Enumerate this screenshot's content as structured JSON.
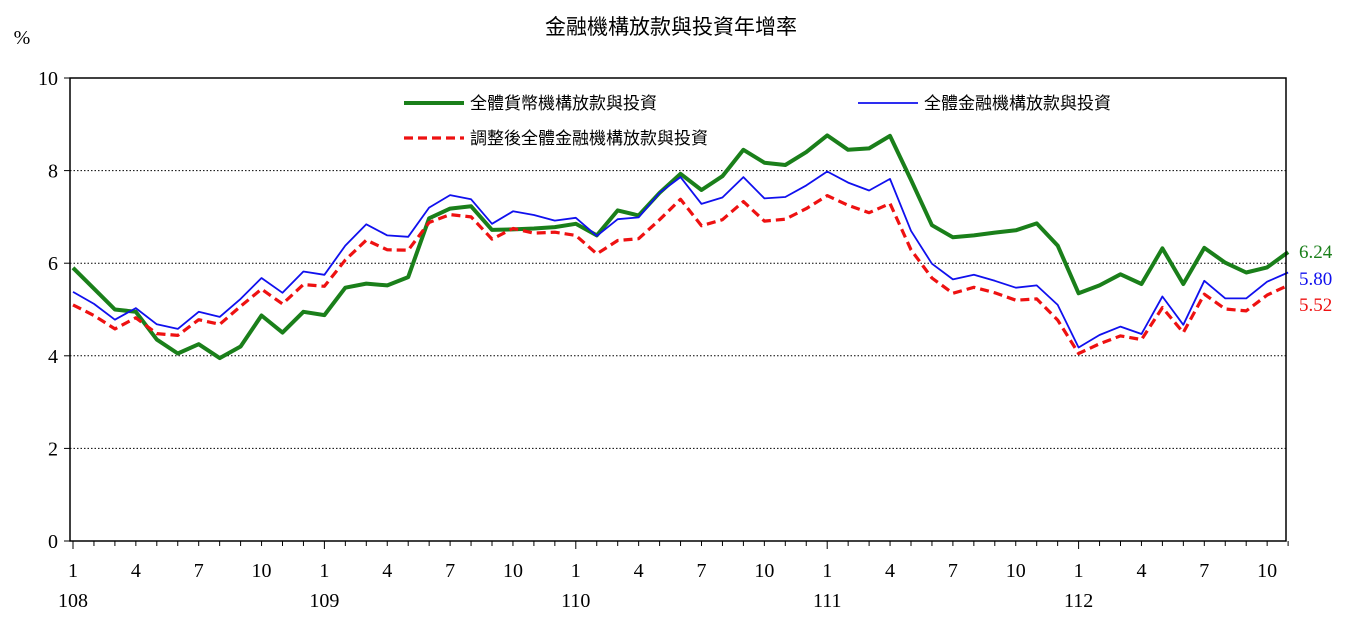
{
  "chart_data": {
    "type": "line",
    "title": "金融機構放款與投資年增率",
    "ylabel": "%",
    "ylim": [
      0,
      10
    ],
    "yticks": [
      0,
      2,
      4,
      6,
      8,
      10
    ],
    "grid": "horizontal dotted",
    "legend_position": "top inside plot",
    "x_month_ticks": [
      "1",
      "4",
      "7",
      "10",
      "1",
      "4",
      "7",
      "10",
      "1",
      "4",
      "7",
      "10",
      "1",
      "4",
      "7",
      "10",
      "1",
      "4",
      "7",
      "10"
    ],
    "x_year_labels": [
      "108",
      "109",
      "110",
      "111",
      "112"
    ],
    "x": [
      "108/1",
      "108/2",
      "108/3",
      "108/4",
      "108/5",
      "108/6",
      "108/7",
      "108/8",
      "108/9",
      "108/10",
      "108/11",
      "108/12",
      "109/1",
      "109/2",
      "109/3",
      "109/4",
      "109/5",
      "109/6",
      "109/7",
      "109/8",
      "109/9",
      "109/10",
      "109/11",
      "109/12",
      "110/1",
      "110/2",
      "110/3",
      "110/4",
      "110/5",
      "110/6",
      "110/7",
      "110/8",
      "110/9",
      "110/10",
      "110/11",
      "110/12",
      "111/1",
      "111/2",
      "111/3",
      "111/4",
      "111/5",
      "111/6",
      "111/7",
      "111/8",
      "111/9",
      "111/10",
      "111/11",
      "111/12",
      "112/1",
      "112/2",
      "112/3",
      "112/4",
      "112/5",
      "112/6",
      "112/7",
      "112/8",
      "112/9",
      "112/10",
      "112/11"
    ],
    "series": [
      {
        "name": "全體貨幣機構放款與投資",
        "color": "#1a7f1a",
        "style": "solid-thick",
        "end_label": "6.24",
        "values": [
          5.9,
          5.45,
          5.0,
          4.95,
          4.35,
          4.05,
          4.25,
          3.95,
          4.2,
          4.87,
          4.5,
          4.95,
          4.88,
          5.47,
          5.56,
          5.52,
          5.7,
          6.97,
          7.18,
          7.23,
          6.72,
          6.73,
          6.75,
          6.78,
          6.85,
          6.6,
          7.14,
          7.03,
          7.52,
          7.93,
          7.58,
          7.88,
          8.45,
          8.17,
          8.12,
          8.4,
          8.76,
          8.45,
          8.48,
          8.75,
          7.8,
          6.82,
          6.56,
          6.6,
          6.66,
          6.71,
          6.86,
          6.38,
          5.35,
          5.52,
          5.76,
          5.55,
          6.32,
          5.55,
          6.33,
          6.01,
          5.8,
          5.91,
          6.24
        ]
      },
      {
        "name": "全體金融機構放款與投資",
        "color": "#1010ee",
        "style": "solid-thin",
        "end_label": "5.80",
        "values": [
          5.38,
          5.12,
          4.78,
          5.03,
          4.68,
          4.58,
          4.95,
          4.84,
          5.23,
          5.68,
          5.36,
          5.82,
          5.75,
          6.38,
          6.84,
          6.6,
          6.57,
          7.2,
          7.47,
          7.38,
          6.85,
          7.12,
          7.04,
          6.92,
          6.98,
          6.59,
          6.95,
          6.99,
          7.52,
          7.86,
          7.28,
          7.42,
          7.86,
          7.4,
          7.43,
          7.68,
          7.98,
          7.74,
          7.57,
          7.82,
          6.7,
          5.99,
          5.65,
          5.75,
          5.62,
          5.47,
          5.52,
          5.1,
          4.18,
          4.45,
          4.63,
          4.47,
          5.28,
          4.67,
          5.62,
          5.24,
          5.24,
          5.6,
          5.8
        ]
      },
      {
        "name": "調整後全體金融機構放款與投資",
        "color": "#ee1111",
        "style": "dashed",
        "end_label": "5.52",
        "values": [
          5.1,
          4.87,
          4.58,
          4.82,
          4.48,
          4.44,
          4.78,
          4.68,
          5.07,
          5.44,
          5.12,
          5.54,
          5.5,
          6.07,
          6.5,
          6.29,
          6.28,
          6.88,
          7.05,
          7.0,
          6.52,
          6.75,
          6.65,
          6.67,
          6.6,
          6.2,
          6.49,
          6.53,
          6.94,
          7.38,
          6.81,
          6.94,
          7.33,
          6.91,
          6.95,
          7.18,
          7.46,
          7.25,
          7.09,
          7.29,
          6.29,
          5.68,
          5.35,
          5.48,
          5.36,
          5.2,
          5.23,
          4.77,
          4.05,
          4.26,
          4.43,
          4.35,
          5.04,
          4.5,
          5.33,
          5.01,
          4.97,
          5.31,
          5.52
        ]
      }
    ]
  }
}
